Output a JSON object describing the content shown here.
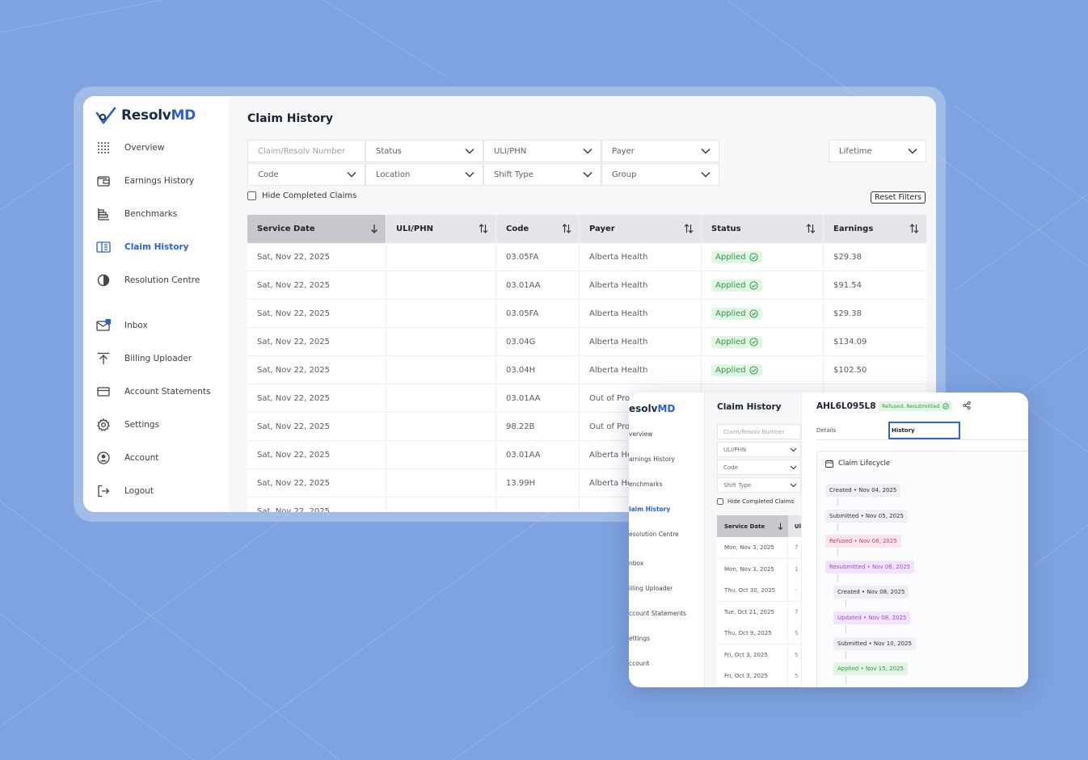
{
  "app": {
    "brand_part1": "Resolv",
    "brand_part2": "MD",
    "colors": {
      "accent": "#2b5fd0",
      "background": "#7fa3e0",
      "success": "#2e9a45",
      "success_bg": "#e2f5e4",
      "refused_bg": "#fde4ec",
      "resubmitted_bg": "#f1e3fb",
      "updated_bg": "#f1e3fb"
    }
  },
  "sidebar": {
    "items": [
      {
        "label": "Overview",
        "icon": "grid-icon"
      },
      {
        "label": "Earnings History",
        "icon": "wallet-icon"
      },
      {
        "label": "Benchmarks",
        "icon": "bar-chart-icon"
      },
      {
        "label": "Claim History",
        "icon": "book-icon",
        "active": true
      },
      {
        "label": "Resolution Centre",
        "icon": "pie-icon"
      },
      {
        "label": "Inbox",
        "icon": "mail-icon",
        "badge": "0"
      },
      {
        "label": "Billing Uploader",
        "icon": "upload-icon"
      },
      {
        "label": "Account Statements",
        "icon": "card-icon"
      },
      {
        "label": "Settings",
        "icon": "gear-icon"
      },
      {
        "label": "Account",
        "icon": "user-icon"
      },
      {
        "label": "Logout",
        "icon": "logout-icon"
      }
    ]
  },
  "main": {
    "title": "Claim History",
    "filters": {
      "claim_number_placeholder": "Claim/Resolv Number",
      "status": "Status",
      "uli_phn": "ULI/PHN",
      "payer": "Payer",
      "lifetime": "Lifetime",
      "code": "Code",
      "location": "Location",
      "shift_type": "Shift Type",
      "group": "Group"
    },
    "hide_completed": "Hide Completed Claims",
    "reset_filters": "Reset Filters",
    "columns": [
      "Service Date",
      "ULI/PHN",
      "Code",
      "Payer",
      "Status",
      "Earnings"
    ],
    "rows": [
      {
        "date": "Sat, Nov 22, 2025",
        "uli": "",
        "code": "03.05FA",
        "payer": "Alberta Health",
        "status": "Applied",
        "earnings": "$29.38"
      },
      {
        "date": "Sat, Nov 22, 2025",
        "uli": "",
        "code": "03.01AA",
        "payer": "Alberta Health",
        "status": "Applied",
        "earnings": "$91.54"
      },
      {
        "date": "Sat, Nov 22, 2025",
        "uli": "",
        "code": "03.05FA",
        "payer": "Alberta Health",
        "status": "Applied",
        "earnings": "$29.38"
      },
      {
        "date": "Sat, Nov 22, 2025",
        "uli": "",
        "code": "03.04G",
        "payer": "Alberta Health",
        "status": "Applied",
        "earnings": "$134.09"
      },
      {
        "date": "Sat, Nov 22, 2025",
        "uli": "",
        "code": "03.04H",
        "payer": "Alberta Health",
        "status": "Applied",
        "earnings": "$102.50"
      },
      {
        "date": "Sat, Nov 22, 2025",
        "uli": "",
        "code": "03.01AA",
        "payer": "Out of Pro",
        "status": "",
        "earnings": ""
      },
      {
        "date": "Sat, Nov 22, 2025",
        "uli": "",
        "code": "98.22B",
        "payer": "Out of Pro",
        "status": "",
        "earnings": ""
      },
      {
        "date": "Sat, Nov 22, 2025",
        "uli": "",
        "code": "03.01AA",
        "payer": "Alberta He",
        "status": "",
        "earnings": ""
      },
      {
        "date": "Sat, Nov 22, 2025",
        "uli": "",
        "code": "13.99H",
        "payer": "Alberta He",
        "status": "",
        "earnings": ""
      },
      {
        "date": "Sat, Nov 22, 2025",
        "uli": "",
        "code": "",
        "payer": "",
        "status": "",
        "earnings": ""
      }
    ]
  },
  "overlay": {
    "brand": "esolv",
    "brand2": "MD",
    "nav": [
      "verview",
      "arnings History",
      "enchmarks",
      "laim History",
      "esolution Centre",
      "nbox",
      "illing Uploader",
      "ccount Statements",
      "ettings",
      "ccount"
    ],
    "title": "Claim History",
    "filters": [
      "Claim/Resolv Number",
      "ULI/PHN",
      "Code",
      "Shift Type"
    ],
    "hide_completed": "Hide Completed Claims",
    "col1": "Service Date",
    "col2": "Ul",
    "rows": [
      {
        "date": "Mon, Nov 3, 2025",
        "c2": "7"
      },
      {
        "date": "Mon, Nov 3, 2025",
        "c2": "1"
      },
      {
        "date": "Thu, Oct 30, 2025",
        "c2": "-"
      },
      {
        "date": "Tue, Oct 21, 2025",
        "c2": "7"
      },
      {
        "date": "Thu, Oct 9, 2025",
        "c2": "5"
      },
      {
        "date": "Fri, Oct 3, 2025",
        "c2": "5"
      },
      {
        "date": "Fri, Oct 3, 2025",
        "c2": "5"
      }
    ],
    "detail": {
      "claim_id": "AHL6L095L8",
      "badge": "Refused, Resubmitted",
      "tab_details": "Details",
      "tab_history": "History",
      "lifecycle_title": "Claim Lifecycle",
      "events": [
        {
          "label": "Created • Nov 04, 2025",
          "kind": "neutral"
        },
        {
          "label": "Submitted • Nov 05, 2025",
          "kind": "neutral"
        },
        {
          "label": "Refused • Nov 08, 2025",
          "kind": "refused"
        },
        {
          "label": "Resubmitted • Nov 08, 2025",
          "kind": "resubmitted"
        },
        {
          "label": "Created • Nov 08, 2025",
          "kind": "neutral"
        },
        {
          "label": "Updated • Nov 08, 2025",
          "kind": "updated"
        },
        {
          "label": "Submitted • Nov 10, 2025",
          "kind": "neutral"
        },
        {
          "label": "Applied • Nov 15, 2025",
          "kind": "applied"
        }
      ]
    }
  }
}
